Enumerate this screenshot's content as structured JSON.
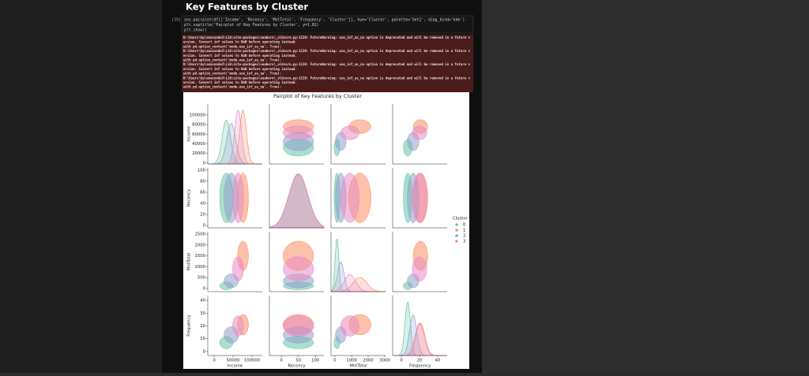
{
  "heading": "Key Features by Cluster",
  "cell": {
    "prompt": "[39]:",
    "code": [
      "sns.pairplot(df[['Income', 'Recency', 'MntTotal', 'Frequency', 'Cluster']], hue='Cluster', palette='Set2', diag_kind='kde')",
      "plt.suptitle('Pairplot of Key Features by Cluster', y=1.02)",
      "plt.show()"
    ],
    "warnings": [
      "D:\\Users\\hp\\anaconda3\\Lib\\site-packages\\seaborn\\_oldcore.py:1119: FutureWarning: use_inf_as_na option is deprecated and will be removed in a future v",
      "ersion. Convert inf values to NaN before operating instead.",
      "  with pd.option_context('mode.use_inf_as_na', True):",
      "D:\\Users\\hp\\anaconda3\\Lib\\site-packages\\seaborn\\_oldcore.py:1119: FutureWarning: use_inf_as_na option is deprecated and will be removed in a future v",
      "ersion. Convert inf values to NaN before operating instead.",
      "  with pd.option_context('mode.use_inf_as_na', True):",
      "D:\\Users\\hp\\anaconda3\\Lib\\site-packages\\seaborn\\_oldcore.py:1119: FutureWarning: use_inf_as_na option is deprecated and will be removed in a future v",
      "ersion. Convert inf values to NaN before operating instead.",
      "  with pd.option_context('mode.use_inf_as_na', True):",
      "D:\\Users\\hp\\anaconda3\\Lib\\site-packages\\seaborn\\_oldcore.py:1119: FutureWarning: use_inf_as_na option is deprecated and will be removed in a future v",
      "ersion. Convert inf values to NaN before operating instead.",
      "  with pd.option_context('mode.use_inf_as_na', True):"
    ]
  },
  "figure": {
    "title": "Pairplot of Key Features by Cluster",
    "variables": [
      {
        "name": "Income",
        "xlim": [
          -17000,
          127000
        ],
        "ylim": [
          -2000,
          123000
        ],
        "xticks": [
          0,
          50000,
          100000
        ],
        "yticks": [
          0,
          20000,
          40000,
          60000,
          80000,
          100000
        ]
      },
      {
        "name": "Recency",
        "xlim": [
          -35,
          125
        ],
        "ylim": [
          -4,
          104
        ],
        "xticks": [
          0,
          50,
          100
        ],
        "yticks": [
          0,
          20,
          40,
          60,
          80,
          100
        ]
      },
      {
        "name": "MntTotal",
        "xlim": [
          -238,
          3048
        ],
        "ylim": [
          -145,
          2609
        ],
        "xticks": [
          0,
          1000,
          2000,
          3000
        ],
        "yticks": [
          0,
          500,
          1000,
          1500,
          2000,
          2500
        ]
      },
      {
        "name": "Frequency",
        "xlim": [
          -9.6,
          50.4
        ],
        "ylim": [
          -3.1,
          43.75
        ],
        "xticks": [
          0,
          20,
          40
        ],
        "yticks": [
          0,
          10,
          20,
          30,
          40
        ]
      }
    ],
    "legend_title": "Cluster",
    "clusters": [
      {
        "name": "0",
        "color": "#66c2a5",
        "means": [
          32000,
          50,
          120,
          7
        ],
        "sds": [
          11000,
          28,
          110,
          3
        ]
      },
      {
        "name": "1",
        "color": "#fc8d62",
        "means": [
          76000,
          50,
          1500,
          21
        ],
        "sds": [
          9000,
          28,
          420,
          5
        ]
      },
      {
        "name": "2",
        "color": "#8da0cb",
        "means": [
          45000,
          50,
          350,
          13
        ],
        "sds": [
          12000,
          28,
          200,
          4
        ]
      },
      {
        "name": "3",
        "color": "#e78ac3",
        "means": [
          63000,
          50,
          900,
          20
        ],
        "sds": [
          9000,
          28,
          350,
          5
        ]
      }
    ]
  }
}
